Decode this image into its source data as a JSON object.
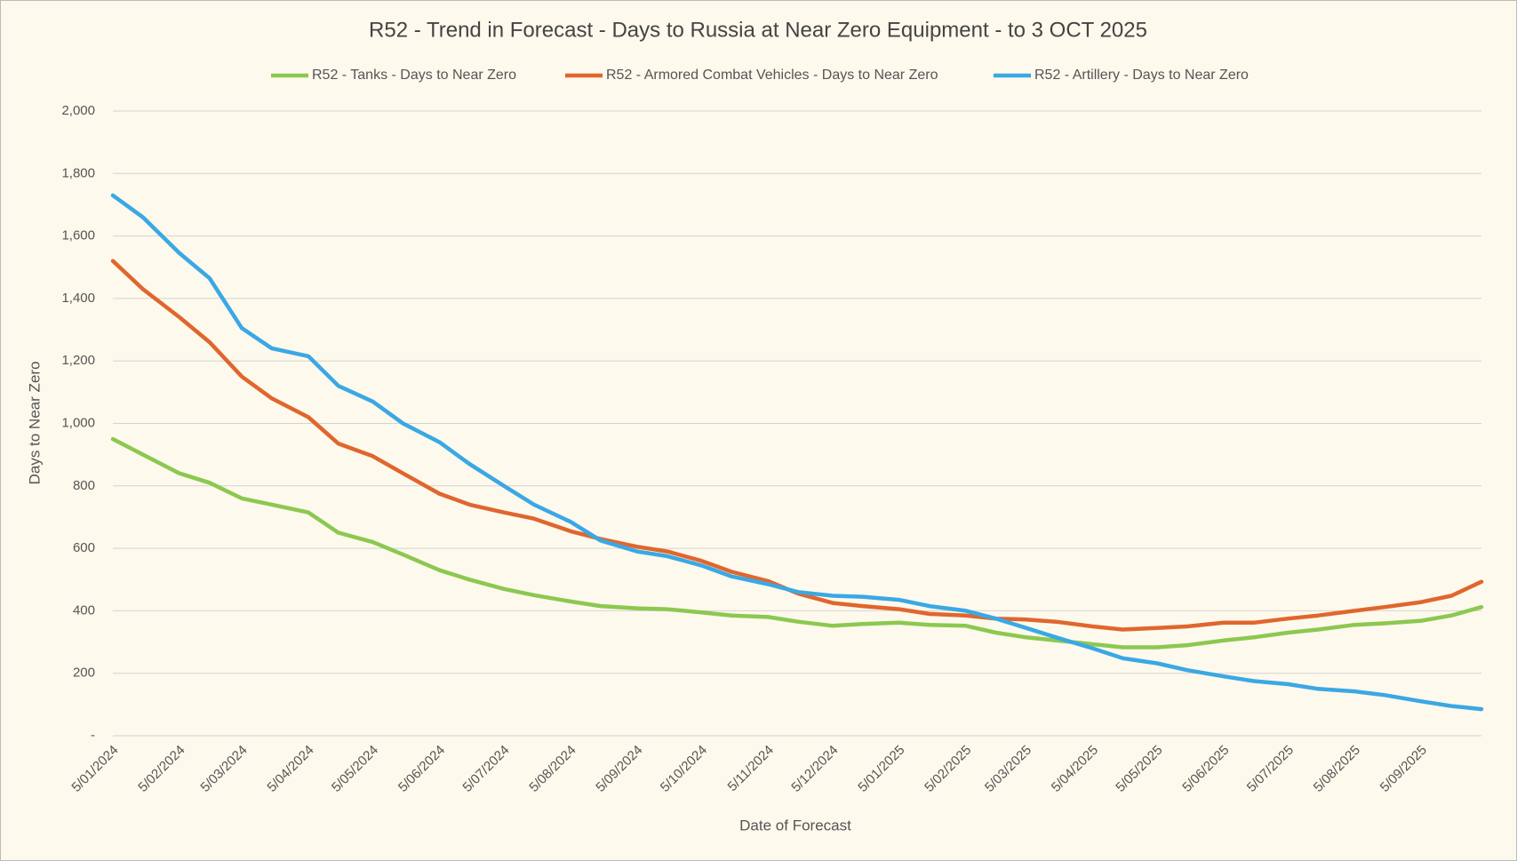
{
  "chart_data": {
    "type": "line",
    "title": "R52 - Trend in Forecast - Days to Russia at Near Zero Equipment - to 3 OCT 2025",
    "x_label": "Date of Forecast",
    "y_label": "Days to Near Zero",
    "x": [
      "5/01/2024",
      "19/01/2024",
      "5/02/2024",
      "19/02/2024",
      "5/03/2024",
      "19/03/2024",
      "5/04/2024",
      "19/04/2024",
      "5/05/2024",
      "19/05/2024",
      "5/06/2024",
      "19/06/2024",
      "5/07/2024",
      "19/07/2024",
      "5/08/2024",
      "19/08/2024",
      "5/09/2024",
      "19/09/2024",
      "5/10/2024",
      "19/10/2024",
      "5/11/2024",
      "19/11/2024",
      "5/12/2024",
      "19/12/2024",
      "5/01/2025",
      "19/01/2025",
      "5/02/2025",
      "19/02/2025",
      "5/03/2025",
      "19/03/2025",
      "5/04/2025",
      "19/04/2025",
      "5/05/2025",
      "19/05/2025",
      "5/06/2025",
      "19/06/2025",
      "5/07/2025",
      "19/07/2025",
      "5/08/2025",
      "19/08/2025",
      "5/09/2025",
      "19/09/2025",
      "3/10/2025"
    ],
    "series": [
      {
        "name": "R52 - Tanks - Days to Near Zero",
        "color": "#8cc850",
        "values": [
          950,
          900,
          840,
          810,
          760,
          740,
          715,
          650,
          620,
          580,
          530,
          500,
          470,
          450,
          430,
          415,
          408,
          405,
          395,
          385,
          380,
          365,
          352,
          358,
          362,
          355,
          352,
          330,
          315,
          305,
          293,
          283,
          283,
          290,
          305,
          315,
          330,
          340,
          355,
          360,
          368,
          385,
          412
        ]
      },
      {
        "name": "R52 - Armored Combat Vehicles - Days to Near Zero",
        "color": "#e0662e",
        "values": [
          1520,
          1430,
          1340,
          1260,
          1150,
          1080,
          1020,
          935,
          895,
          840,
          775,
          740,
          715,
          695,
          655,
          630,
          605,
          590,
          560,
          525,
          495,
          455,
          425,
          415,
          405,
          390,
          385,
          375,
          372,
          365,
          350,
          340,
          345,
          350,
          362,
          362,
          375,
          385,
          400,
          412,
          428,
          448,
          493
        ]
      },
      {
        "name": "R52 - Artillery - Days to Near Zero",
        "color": "#3aa8e4",
        "values": [
          1730,
          1660,
          1545,
          1465,
          1305,
          1240,
          1215,
          1120,
          1070,
          1000,
          940,
          870,
          800,
          740,
          685,
          625,
          590,
          575,
          545,
          510,
          485,
          460,
          448,
          445,
          435,
          415,
          400,
          375,
          345,
          315,
          280,
          248,
          232,
          210,
          190,
          175,
          165,
          150,
          142,
          130,
          110,
          95,
          85
        ]
      }
    ],
    "xlim": [
      "5/01/2024",
      "3/10/2025"
    ],
    "xticks": [
      "5/01/2024",
      "5/02/2024",
      "5/03/2024",
      "5/04/2024",
      "5/05/2024",
      "5/06/2024",
      "5/07/2024",
      "5/08/2024",
      "5/09/2024",
      "5/10/2024",
      "5/11/2024",
      "5/12/2024",
      "5/01/2025",
      "5/02/2025",
      "5/03/2025",
      "5/04/2025",
      "5/05/2025",
      "5/06/2025",
      "5/07/2025",
      "5/08/2025",
      "5/09/2025"
    ],
    "ylim": [
      0,
      2000
    ],
    "yticks": [
      {
        "value": 0,
        "label": "-"
      },
      200,
      400,
      600,
      800,
      {
        "value": 1000,
        "label": "1,000"
      },
      {
        "value": 1200,
        "label": "1,200"
      },
      {
        "value": 1400,
        "label": "1,400"
      },
      {
        "value": 1600,
        "label": "1,600"
      },
      {
        "value": 1800,
        "label": "1,800"
      },
      {
        "value": 2000,
        "label": "2,000"
      }
    ],
    "grid": true,
    "legend": "top"
  }
}
